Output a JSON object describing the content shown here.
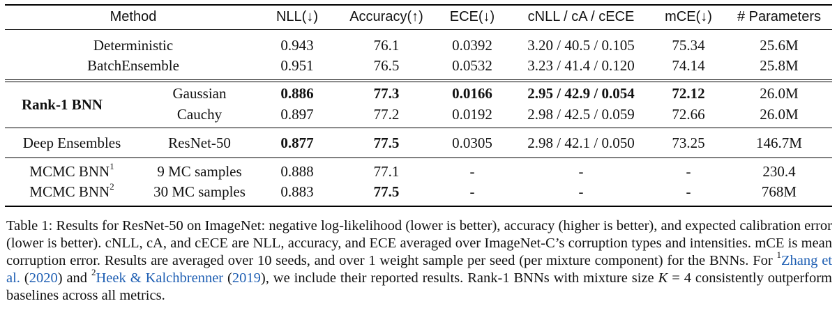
{
  "table": {
    "headers": {
      "method": "Method",
      "nll": "NLL(↓)",
      "accuracy": "Accuracy(↑)",
      "ece": "ECE(↓)",
      "corrupt": "cNLL / cA / cECE",
      "mce": "mCE(↓)",
      "params": "# Parameters"
    },
    "rows": {
      "deterministic": {
        "method": "Deterministic",
        "nll": "0.943",
        "acc": "76.1",
        "ece": "0.0392",
        "corrupt": "3.20 / 40.5 / 0.105",
        "mce": "75.34",
        "params": "25.6M"
      },
      "batchensemble": {
        "method": "BatchEnsemble",
        "nll": "0.951",
        "acc": "76.5",
        "ece": "0.0532",
        "corrupt": "3.23 / 41.4 / 0.120",
        "mce": "74.14",
        "params": "25.8M"
      },
      "rank1_group": "Rank-1 BNN",
      "gaussian": {
        "variant": "Gaussian",
        "nll": "0.886",
        "acc": "77.3",
        "ece": "0.0166",
        "corrupt": "2.95 / 42.9 / 0.054",
        "mce": "72.12",
        "params": "26.0M"
      },
      "cauchy": {
        "variant": "Cauchy",
        "nll": "0.897",
        "acc": "77.2",
        "ece": "0.0192",
        "corrupt": "2.98 / 42.5 / 0.059",
        "mce": "72.66",
        "params": "26.0M"
      },
      "deep_ensembles": {
        "method": "Deep Ensembles",
        "variant": "ResNet-50",
        "nll": "0.877",
        "acc": "77.5",
        "ece": "0.0305",
        "corrupt": "2.98 / 42.1 / 0.050",
        "mce": "73.25",
        "params": "146.7M"
      },
      "mcmc1": {
        "method": "MCMC BNN",
        "sup": "1",
        "variant": "9 MC samples",
        "nll": "0.888",
        "acc": "77.1",
        "ece": "-",
        "corrupt": "-",
        "mce": "-",
        "params": "230.4"
      },
      "mcmc2": {
        "method": "MCMC BNN",
        "sup": "2",
        "variant": "30 MC samples",
        "nll": "0.883",
        "acc": "77.5",
        "ece": "-",
        "corrupt": "-",
        "mce": "-",
        "params": "768M"
      }
    }
  },
  "caption": {
    "p1": "Table 1: Results for ResNet-50 on ImageNet: negative log-likelihood (lower is better), accuracy (higher is better), and expected calibration error (lower is better). cNLL, cA, and cECE are NLL, accuracy, and ECE averaged over ImageNet-C’s corruption types and intensities. mCE is mean corruption error. Results are averaged over 10 seeds, and over 1 weight sample per seed (per mixture component) for the BNNs. For ",
    "sup1": "1",
    "cite1": "Zhang et al.",
    "cite1_open": " (",
    "cite1_year": "2020",
    "p2": ") and ",
    "sup2": "2",
    "cite2": "Heek & Kalchbrenner",
    "cite2_open": " (",
    "cite2_year": "2019",
    "p3": "), we include their reported results. Rank-1 BNNs with mixture size ",
    "math_k": "K",
    "math_eq": " = 4",
    "p4": " consistently outperform baselines across all metrics."
  }
}
